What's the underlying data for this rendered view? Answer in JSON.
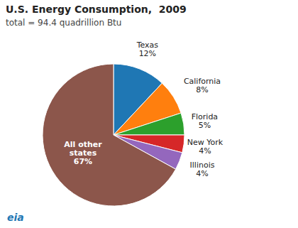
{
  "chart_data": {
    "type": "pie",
    "title": "U.S. Energy Consumption,  2009",
    "subtitle": "total = 94.4 quadrillion Btu",
    "categories": [
      "Texas",
      "California",
      "Florida",
      "New York",
      "Illinois",
      "All other\nstates"
    ],
    "values": [
      12,
      8,
      5,
      4,
      4,
      67
    ],
    "value_labels": [
      "12%",
      "8%",
      "5%",
      "4%",
      "4%",
      "67%"
    ],
    "data_labels": true,
    "annotations": [
      "eia"
    ]
  }
}
